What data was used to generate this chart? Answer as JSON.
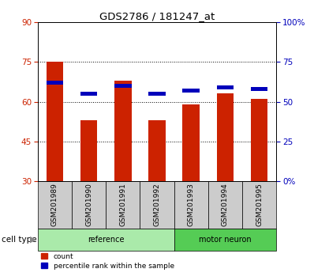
{
  "title": "GDS2786 / 181247_at",
  "samples": [
    "GSM201989",
    "GSM201990",
    "GSM201991",
    "GSM201992",
    "GSM201993",
    "GSM201994",
    "GSM201995"
  ],
  "count_values": [
    75,
    53,
    68,
    53,
    59,
    63,
    61
  ],
  "percentile_values": [
    62,
    55,
    60,
    55,
    57,
    59,
    58
  ],
  "groups": [
    {
      "label": "reference",
      "start": 0,
      "end": 4
    },
    {
      "label": "motor neuron",
      "start": 4,
      "end": 7
    }
  ],
  "ylim_left": [
    30,
    90
  ],
  "ylim_right": [
    0,
    100
  ],
  "yticks_left": [
    30,
    45,
    60,
    75,
    90
  ],
  "yticks_right": [
    0,
    25,
    50,
    75,
    100
  ],
  "ytick_labels_right": [
    "0%",
    "25",
    "50",
    "75",
    "100%"
  ],
  "bar_color_red": "#cc2200",
  "bar_color_blue": "#0000bb",
  "bar_width": 0.5,
  "blue_bar_width": 0.5,
  "blue_bar_height": 1.5,
  "grid_yticks": [
    45,
    60,
    75
  ],
  "plot_bg": "white",
  "legend_red": "count",
  "legend_blue": "percentile rank within the sample",
  "cell_type_label": "cell type",
  "tick_color_left": "#cc2200",
  "tick_color_right": "#0000bb",
  "ref_color": "#aaeaaa",
  "motor_color": "#55cc55",
  "sample_box_color": "#cccccc",
  "label_fontsize": 7,
  "tick_fontsize": 7.5,
  "title_fontsize": 9.5
}
